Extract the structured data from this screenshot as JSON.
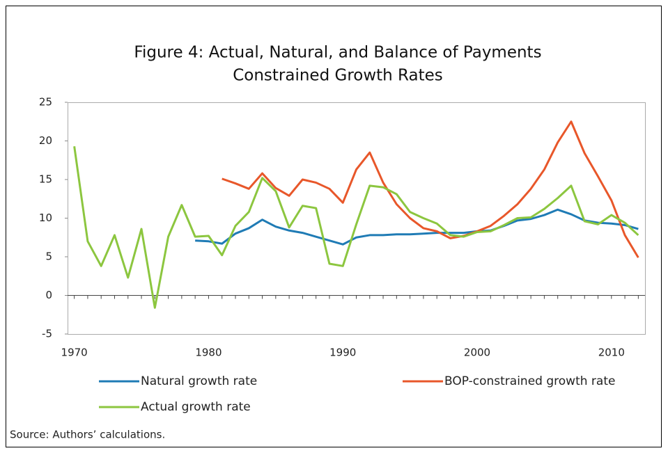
{
  "chart_data": {
    "type": "line",
    "title": "Figure 4: Actual, Natural, and Balance of Payments",
    "subtitle": "Constrained Growth Rates",
    "note": "Source: Authors’ calculations.",
    "x": [
      1970,
      1971,
      1972,
      1973,
      1974,
      1975,
      1976,
      1977,
      1978,
      1979,
      1980,
      1981,
      1982,
      1983,
      1984,
      1985,
      1986,
      1987,
      1988,
      1989,
      1990,
      1991,
      1992,
      1993,
      1994,
      1995,
      1996,
      1997,
      1998,
      1999,
      2000,
      2001,
      2002,
      2003,
      2004,
      2005,
      2006,
      2007,
      2008,
      2009,
      2010,
      2011,
      2012
    ],
    "xlim": [
      1969.5,
      2012.5
    ],
    "xticks": [
      1970,
      1980,
      1990,
      2000,
      2010
    ],
    "ylim": [
      -5,
      25
    ],
    "yticks": [
      -5,
      0,
      5,
      10,
      15,
      20,
      25
    ],
    "series": [
      {
        "name": "Natural growth rate",
        "color": "#1f7bb5",
        "values": [
          null,
          null,
          null,
          null,
          null,
          null,
          null,
          null,
          null,
          7.1,
          7.0,
          6.7,
          8.0,
          8.7,
          9.8,
          8.9,
          8.4,
          8.1,
          7.6,
          7.1,
          6.6,
          7.5,
          7.8,
          7.8,
          7.9,
          7.9,
          8.0,
          8.1,
          8.1,
          8.1,
          8.3,
          8.4,
          9.0,
          9.7,
          9.9,
          10.4,
          11.1,
          10.5,
          9.7,
          9.4,
          9.3,
          9.1,
          8.6
        ]
      },
      {
        "name": "BOP-constrained growth rate",
        "color": "#e8572a",
        "values": [
          null,
          null,
          null,
          null,
          null,
          null,
          null,
          null,
          null,
          null,
          null,
          15.1,
          14.5,
          13.8,
          15.8,
          13.9,
          12.9,
          15.0,
          14.6,
          13.8,
          12.0,
          16.3,
          18.5,
          14.6,
          11.8,
          10.0,
          8.7,
          8.3,
          7.4,
          7.7,
          8.3,
          9.0,
          10.3,
          11.8,
          13.8,
          16.3,
          19.8,
          22.5,
          18.4,
          15.4,
          12.3,
          7.8,
          4.9
        ]
      },
      {
        "name": "Actual growth rate",
        "color": "#8cc63f",
        "values": [
          19.3,
          7.0,
          3.8,
          7.8,
          2.3,
          8.6,
          -1.6,
          7.6,
          11.7,
          7.6,
          7.7,
          5.2,
          9.0,
          10.8,
          15.2,
          13.5,
          8.8,
          11.6,
          11.3,
          4.1,
          3.8,
          9.2,
          14.2,
          14.0,
          13.1,
          10.8,
          10.0,
          9.3,
          7.8,
          7.6,
          8.2,
          8.3,
          9.1,
          10.0,
          10.1,
          11.2,
          12.6,
          14.2,
          9.6,
          9.2,
          10.4,
          9.4,
          7.8
        ]
      }
    ]
  }
}
